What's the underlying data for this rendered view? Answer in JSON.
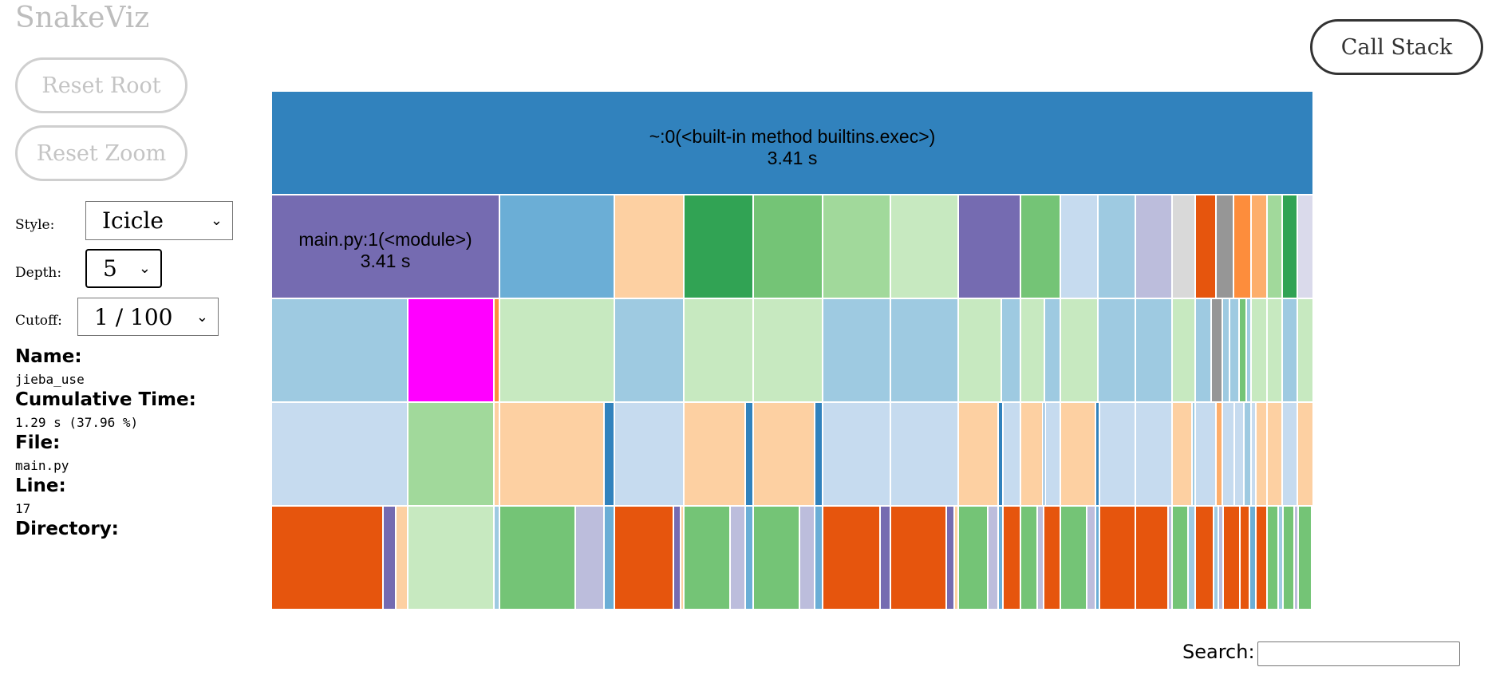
{
  "app": {
    "title": "SnakeViz"
  },
  "buttons": {
    "reset_root": "Reset Root",
    "reset_zoom": "Reset Zoom",
    "call_stack": "Call Stack"
  },
  "controls": {
    "style_label": "Style:",
    "style_value": "Icicle",
    "depth_label": "Depth:",
    "depth_value": "5",
    "cutoff_label": "Cutoff:",
    "cutoff_value": "1 / 100"
  },
  "info": {
    "name_label": "Name:",
    "name_value": "jieba_use",
    "cumtime_label": "Cumulative Time:",
    "cumtime_value": "1.29 s (37.96 %)",
    "file_label": "File:",
    "file_value": "main.py",
    "line_label": "Line:",
    "line_value": "17",
    "directory_label": "Directory:",
    "directory_value": ""
  },
  "search": {
    "label": "Search:",
    "value": ""
  },
  "icicle": {
    "root": {
      "name": "~:0(<built-in method builtins.exec>)",
      "time": "3.41 s",
      "color": "#3182bd"
    },
    "level1_label": {
      "name": "main.py:1(<module>)",
      "time": "3.41 s"
    }
  }
}
